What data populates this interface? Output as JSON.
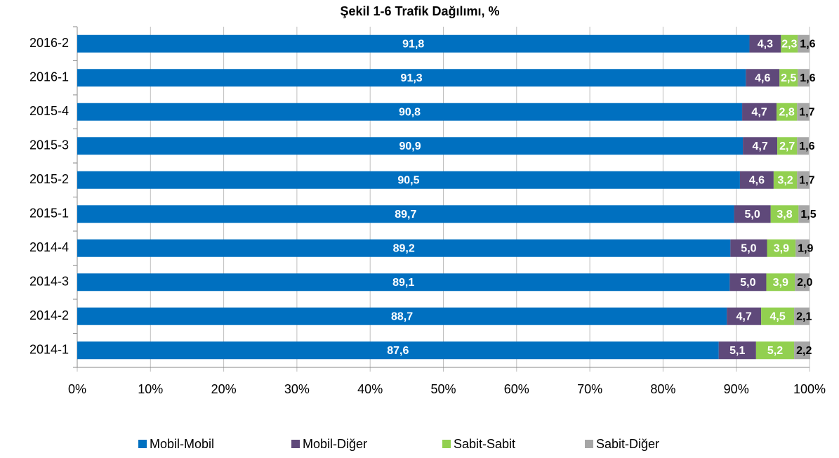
{
  "chart_data": {
    "type": "stacked_barh",
    "title": "Şekil 1-6 Trafik Dağılımı, %",
    "categories": [
      "2016-2",
      "2016-1",
      "2015-4",
      "2015-3",
      "2015-2",
      "2015-1",
      "2014-4",
      "2014-3",
      "2014-2",
      "2014-1"
    ],
    "series": [
      {
        "name": "Mobil-Mobil",
        "color": "#0070c0",
        "values": [
          91.8,
          91.3,
          90.8,
          90.9,
          90.5,
          89.7,
          89.2,
          89.1,
          88.7,
          87.6
        ],
        "value_labels": [
          "91,8",
          "91,3",
          "90,8",
          "90,9",
          "90,5",
          "89,7",
          "89,2",
          "89,1",
          "88,7",
          "87,6"
        ]
      },
      {
        "name": "Mobil-Diğer",
        "color": "#5f497a",
        "values": [
          4.3,
          4.6,
          4.7,
          4.7,
          4.6,
          5.0,
          5.0,
          5.0,
          4.7,
          5.1
        ],
        "value_labels": [
          "4,3",
          "4,6",
          "4,7",
          "4,7",
          "4,6",
          "5,0",
          "5,0",
          "5,0",
          "4,7",
          "5,1"
        ]
      },
      {
        "name": "Sabit-Sabit",
        "color": "#92d050",
        "values": [
          2.3,
          2.5,
          2.8,
          2.7,
          3.2,
          3.8,
          3.9,
          3.9,
          4.5,
          5.2
        ],
        "value_labels": [
          "2,3",
          "2,5",
          "2,8",
          "2,7",
          "3,2",
          "3,8",
          "3,9",
          "3,9",
          "4,5",
          "5,2"
        ]
      },
      {
        "name": "Sabit-Diğer",
        "color": "#a6a6a6",
        "values": [
          1.6,
          1.6,
          1.7,
          1.6,
          1.7,
          1.5,
          1.9,
          2.0,
          2.1,
          2.2
        ],
        "value_labels": [
          "1,6",
          "1,6",
          "1,7",
          "1,6",
          "1,7",
          "1,5",
          "1,9",
          "2,0",
          "2,1",
          "2,2"
        ]
      }
    ],
    "xlim": [
      0,
      100
    ],
    "xticks": [
      {
        "value": 0,
        "label": "0%"
      },
      {
        "value": 10,
        "label": "10%"
      },
      {
        "value": 20,
        "label": "20%"
      },
      {
        "value": 30,
        "label": "30%"
      },
      {
        "value": 40,
        "label": "40%"
      },
      {
        "value": 50,
        "label": "50%"
      },
      {
        "value": 60,
        "label": "60%"
      },
      {
        "value": 70,
        "label": "70%"
      },
      {
        "value": 80,
        "label": "80%"
      },
      {
        "value": 90,
        "label": "90%"
      },
      {
        "value": 100,
        "label": "100%"
      }
    ],
    "grid": true,
    "legend": "bottom"
  }
}
